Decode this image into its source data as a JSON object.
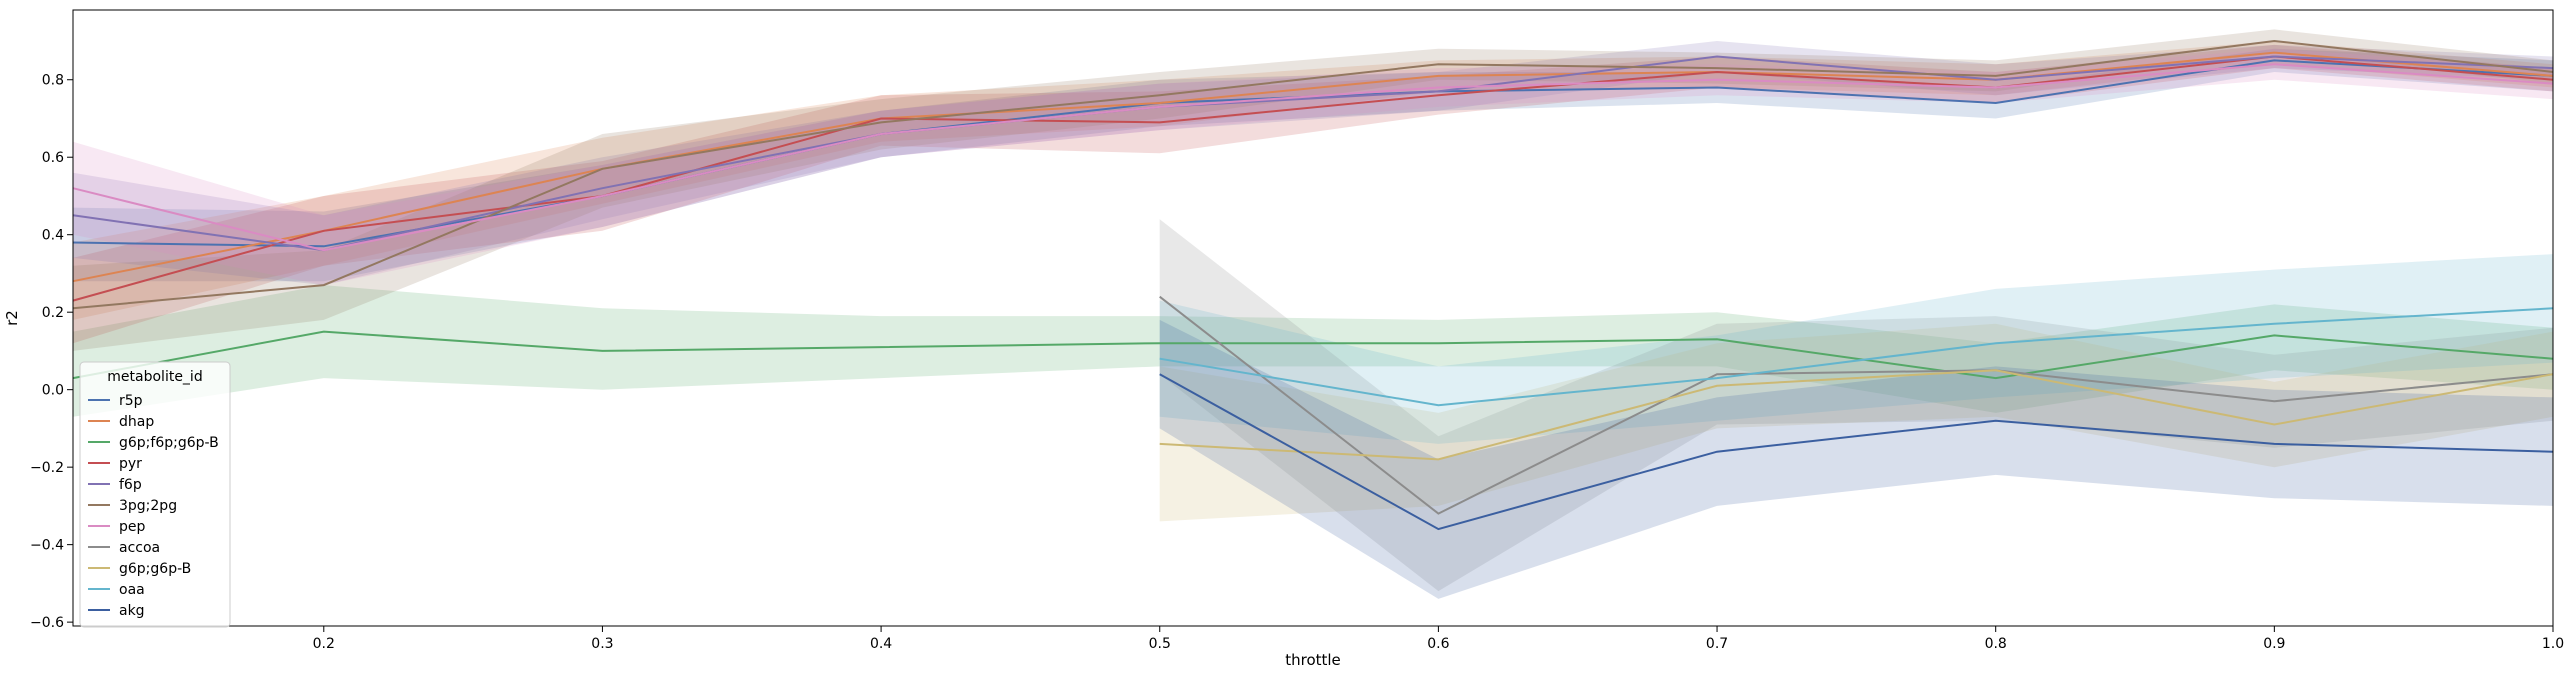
{
  "chart_data": {
    "type": "line",
    "xlabel": "throttle",
    "ylabel": "r2",
    "xlim": [
      0.11,
      1.0
    ],
    "ylim": [
      -0.61,
      0.98
    ],
    "xticks": [
      0.2,
      0.3,
      0.4,
      0.5,
      0.6,
      0.7,
      0.8,
      0.9,
      1.0
    ],
    "xtick_labels": [
      "0.2",
      "0.3",
      "0.4",
      "0.5",
      "0.6",
      "0.7",
      "0.8",
      "0.9",
      "1.0"
    ],
    "yticks": [
      -0.6,
      -0.4,
      -0.2,
      0.0,
      0.2,
      0.4,
      0.6,
      0.8
    ],
    "ytick_labels": [
      "−0.6",
      "−0.4",
      "−0.2",
      "0.0",
      "0.2",
      "0.4",
      "0.6",
      "0.8"
    ],
    "grid": false,
    "legend": {
      "title": "metabolite_id",
      "position": "lower-left"
    },
    "series": [
      {
        "name": "r5p",
        "color": "#4c72b0",
        "x": [
          0.11,
          0.2,
          0.3,
          0.4,
          0.5,
          0.6,
          0.7,
          0.8,
          0.9,
          1.0
        ],
        "y": [
          0.38,
          0.37,
          0.5,
          0.66,
          0.74,
          0.77,
          0.78,
          0.74,
          0.85,
          0.81
        ],
        "lower": [
          0.28,
          0.28,
          0.42,
          0.6,
          0.68,
          0.72,
          0.74,
          0.7,
          0.82,
          0.77
        ],
        "upper": [
          0.47,
          0.46,
          0.58,
          0.72,
          0.8,
          0.82,
          0.82,
          0.78,
          0.88,
          0.85
        ]
      },
      {
        "name": "dhap",
        "color": "#dd8452",
        "x": [
          0.11,
          0.2,
          0.3,
          0.4,
          0.5,
          0.6,
          0.7,
          0.8,
          0.9,
          1.0
        ],
        "y": [
          0.28,
          0.41,
          0.57,
          0.7,
          0.74,
          0.81,
          0.82,
          0.8,
          0.87,
          0.81
        ],
        "lower": [
          0.18,
          0.32,
          0.48,
          0.64,
          0.68,
          0.77,
          0.78,
          0.76,
          0.84,
          0.78
        ],
        "upper": [
          0.38,
          0.5,
          0.65,
          0.76,
          0.8,
          0.85,
          0.86,
          0.84,
          0.9,
          0.84
        ]
      },
      {
        "name": "g6p;f6p;g6p-B",
        "color": "#55a868",
        "x": [
          0.11,
          0.2,
          0.3,
          0.4,
          0.5,
          0.6,
          0.7,
          0.8,
          0.9,
          1.0
        ],
        "y": [
          0.03,
          0.15,
          0.1,
          0.11,
          0.12,
          0.12,
          0.13,
          0.03,
          0.14,
          0.08
        ],
        "lower": [
          -0.07,
          0.03,
          0.0,
          0.03,
          0.06,
          0.06,
          0.06,
          -0.06,
          0.05,
          0.0
        ],
        "upper": [
          0.15,
          0.27,
          0.21,
          0.19,
          0.19,
          0.18,
          0.2,
          0.12,
          0.22,
          0.16
        ]
      },
      {
        "name": "pyr",
        "color": "#c44e52",
        "x": [
          0.11,
          0.2,
          0.3,
          0.4,
          0.5,
          0.6,
          0.7,
          0.8,
          0.9,
          1.0
        ],
        "y": [
          0.23,
          0.41,
          0.5,
          0.7,
          0.69,
          0.76,
          0.82,
          0.78,
          0.86,
          0.8
        ],
        "lower": [
          0.12,
          0.32,
          0.41,
          0.63,
          0.61,
          0.71,
          0.78,
          0.74,
          0.83,
          0.77
        ],
        "upper": [
          0.34,
          0.5,
          0.59,
          0.76,
          0.77,
          0.81,
          0.86,
          0.82,
          0.89,
          0.83
        ]
      },
      {
        "name": "f6p",
        "color": "#8172b3",
        "x": [
          0.11,
          0.2,
          0.3,
          0.4,
          0.5,
          0.6,
          0.7,
          0.8,
          0.9,
          1.0
        ],
        "y": [
          0.45,
          0.36,
          0.52,
          0.66,
          0.73,
          0.77,
          0.86,
          0.8,
          0.86,
          0.83
        ],
        "lower": [
          0.34,
          0.27,
          0.44,
          0.6,
          0.67,
          0.72,
          0.82,
          0.76,
          0.83,
          0.8
        ],
        "upper": [
          0.56,
          0.45,
          0.6,
          0.72,
          0.79,
          0.82,
          0.9,
          0.84,
          0.89,
          0.86
        ]
      },
      {
        "name": "3pg;2pg",
        "color": "#937860",
        "x": [
          0.11,
          0.2,
          0.3,
          0.4,
          0.5,
          0.6,
          0.7,
          0.8,
          0.9,
          1.0
        ],
        "y": [
          0.21,
          0.27,
          0.57,
          0.69,
          0.76,
          0.84,
          0.83,
          0.81,
          0.9,
          0.82
        ],
        "lower": [
          0.1,
          0.18,
          0.47,
          0.62,
          0.7,
          0.8,
          0.79,
          0.77,
          0.87,
          0.79
        ],
        "upper": [
          0.32,
          0.36,
          0.66,
          0.75,
          0.82,
          0.88,
          0.87,
          0.85,
          0.93,
          0.85
        ]
      },
      {
        "name": "pep",
        "color": "#da8bc3",
        "x": [
          0.11,
          0.2,
          0.3,
          0.4,
          0.5,
          0.6,
          0.7,
          0.8,
          0.9,
          1.0
        ],
        "y": [
          0.52,
          0.36,
          0.5,
          0.66,
          0.73,
          0.78,
          0.8,
          0.78,
          0.84,
          0.79
        ],
        "lower": [
          0.4,
          0.27,
          0.42,
          0.6,
          0.67,
          0.73,
          0.76,
          0.74,
          0.8,
          0.75
        ],
        "upper": [
          0.64,
          0.45,
          0.58,
          0.72,
          0.79,
          0.83,
          0.84,
          0.82,
          0.88,
          0.83
        ]
      },
      {
        "name": "accoa",
        "color": "#8c8c8c",
        "x": [
          0.5,
          0.6,
          0.7,
          0.8,
          0.9,
          1.0
        ],
        "y": [
          0.24,
          -0.32,
          0.04,
          0.05,
          -0.03,
          0.04
        ],
        "lower": [
          0.04,
          -0.52,
          -0.09,
          -0.08,
          -0.15,
          -0.08
        ],
        "upper": [
          0.44,
          -0.12,
          0.17,
          0.19,
          0.09,
          0.16
        ]
      },
      {
        "name": "g6p;g6p-B",
        "color": "#ccb974",
        "x": [
          0.5,
          0.6,
          0.7,
          0.8,
          0.9,
          1.0
        ],
        "y": [
          -0.14,
          -0.18,
          0.01,
          0.05,
          -0.09,
          0.04
        ],
        "lower": [
          -0.34,
          -0.3,
          -0.1,
          -0.07,
          -0.2,
          -0.07
        ],
        "upper": [
          0.06,
          -0.06,
          0.12,
          0.17,
          0.02,
          0.15
        ]
      },
      {
        "name": "oaa",
        "color": "#64b5cd",
        "x": [
          0.5,
          0.6,
          0.7,
          0.8,
          0.9,
          1.0
        ],
        "y": [
          0.08,
          -0.04,
          0.03,
          0.12,
          0.17,
          0.21
        ],
        "lower": [
          -0.07,
          -0.14,
          -0.08,
          -0.02,
          0.03,
          0.07
        ],
        "upper": [
          0.23,
          0.06,
          0.14,
          0.26,
          0.31,
          0.35
        ]
      },
      {
        "name": "akg",
        "color": "#3b5fa0",
        "x": [
          0.5,
          0.6,
          0.7,
          0.8,
          0.9,
          1.0
        ],
        "y": [
          0.04,
          -0.36,
          -0.16,
          -0.08,
          -0.14,
          -0.16
        ],
        "lower": [
          -0.1,
          -0.54,
          -0.3,
          -0.22,
          -0.28,
          -0.3
        ],
        "upper": [
          0.18,
          -0.18,
          -0.02,
          0.06,
          0.0,
          -0.02
        ]
      }
    ]
  }
}
